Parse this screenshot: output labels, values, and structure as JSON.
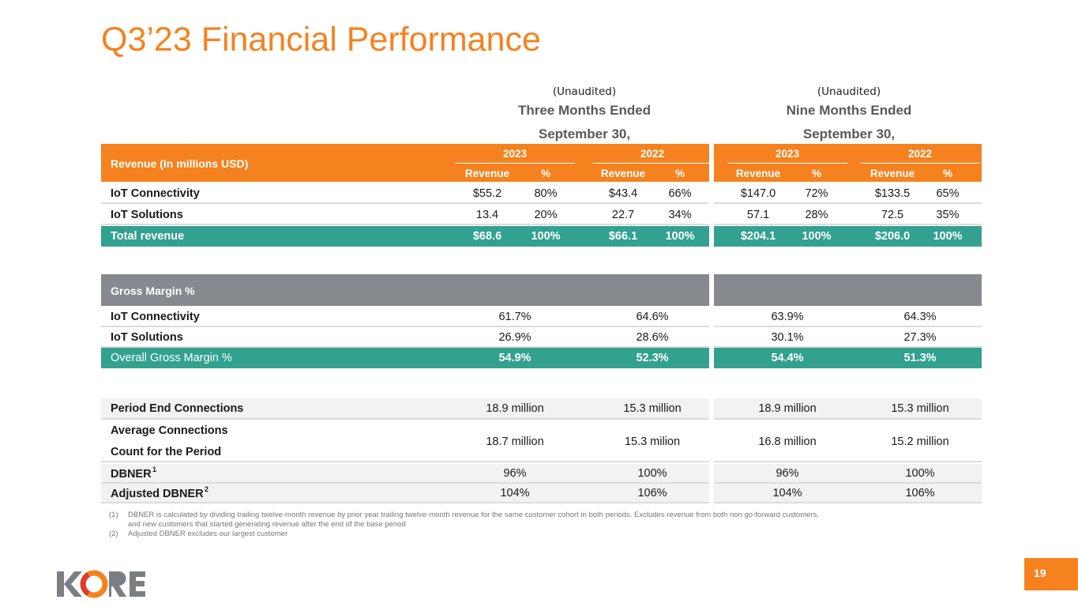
{
  "title": "Q3’23 Financial Performance",
  "three_months": {
    "unaudited": "(Unaudited)",
    "line1": "Three Months Ended",
    "line2": "September 30,"
  },
  "nine_months": {
    "unaudited": "(Unaudited)",
    "line1": "Nine Months Ended",
    "line2": "September 30,"
  },
  "revenue_table": {
    "label": "Revenue (In millions USD)",
    "years": [
      "2023",
      "2022",
      "2023",
      "2022"
    ],
    "subheaders": [
      "Revenue",
      "%",
      "Revenue",
      "%",
      "Revenue",
      "%",
      "Revenue",
      "%"
    ],
    "rows": [
      {
        "label": "IoT Connectivity",
        "values": [
          "$55.2",
          "80%",
          "$43.4",
          "66%",
          "$147.0",
          "72%",
          "$133.5",
          "65%"
        ]
      },
      {
        "label": "IoT Solutions",
        "values": [
          "13.4",
          "20%",
          "22.7",
          "34%",
          "57.1",
          "28%",
          "72.5",
          "35%"
        ]
      },
      {
        "label": "Total revenue",
        "values": [
          "$68.6",
          "100%",
          "$66.1",
          "100%",
          "$204.1",
          "100%",
          "$206.0",
          "100%"
        ]
      }
    ]
  },
  "margin_table": {
    "label": "Gross Margin %",
    "rows": [
      {
        "label": "IoT Connectivity",
        "values": [
          "61.7%",
          "64.6%",
          "63.9%",
          "64.3%"
        ]
      },
      {
        "label": "IoT Solutions",
        "values": [
          "26.9%",
          "28.6%",
          "30.1%",
          "27.3%"
        ]
      },
      {
        "label": "Overall Gross Margin %",
        "values": [
          "54.9%",
          "52.3%",
          "54.4%",
          "51.3%"
        ]
      }
    ]
  },
  "connections_table": {
    "rows": [
      {
        "label": "Period End Connections",
        "values": [
          "18.9 million",
          "15.3 million",
          "18.9 million",
          "15.3 million"
        ]
      },
      {
        "label": "Average Connections",
        "label2": "Count for the Period",
        "values": [
          "18.7 million",
          "15.3 milion",
          "16.8 million",
          "15.2 million"
        ]
      },
      {
        "label": "DBNER",
        "sup": "1",
        "values": [
          "96%",
          "100%",
          "96%",
          "100%"
        ]
      },
      {
        "label": "Adjusted DBNER",
        "sup": "2",
        "values": [
          "104%",
          "106%",
          "104%",
          "106%"
        ]
      }
    ]
  },
  "footnotes": [
    {
      "n": "(1)",
      "text": "DBNER is calculated by dividing trailing twelve-month revenue by prior year trailing twelve-month revenue for the same customer cohort in both periods. Excludes revenue from both non go-forward customers, and new customers that started generating revenue after the end of the base period"
    },
    {
      "n": "(2)",
      "text": "Adjusted DBNER excludes our largest customer"
    }
  ],
  "logo_text": "KORE",
  "page_number": "19"
}
